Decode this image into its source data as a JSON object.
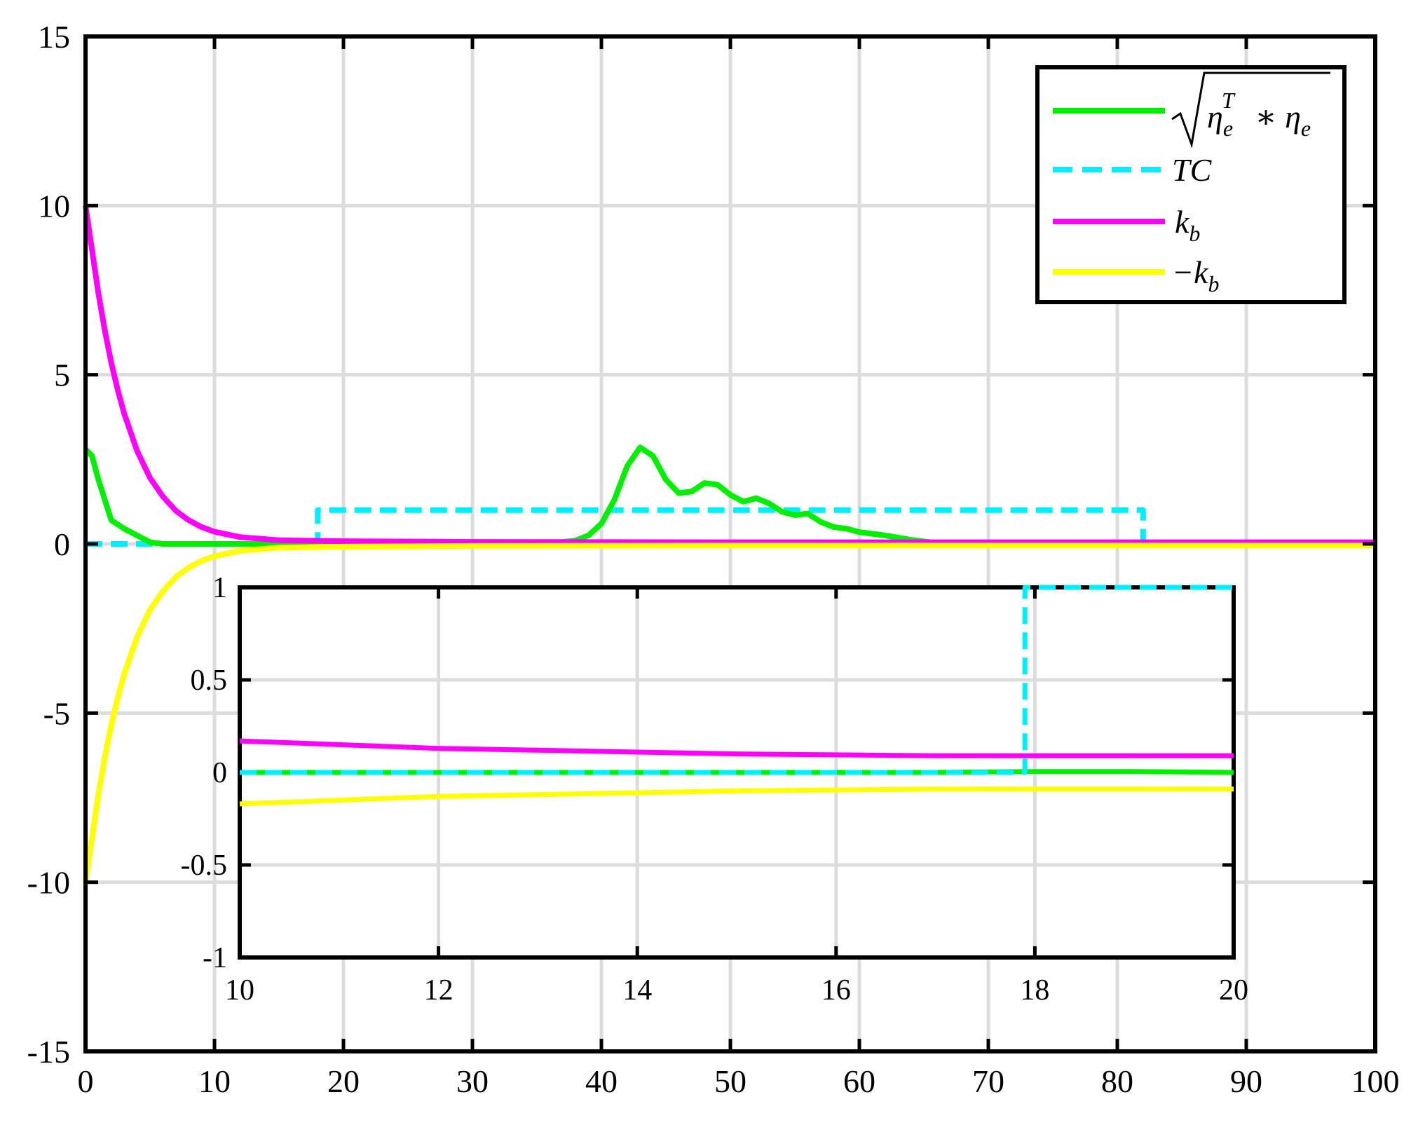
{
  "chart_data": [
    {
      "type": "line",
      "title": "",
      "xlabel": "",
      "ylabel": "",
      "xlim": [
        0,
        100
      ],
      "ylim": [
        -15,
        15
      ],
      "xticks": [
        0,
        10,
        20,
        30,
        40,
        50,
        60,
        70,
        80,
        90,
        100
      ],
      "yticks": [
        15,
        10,
        5,
        0,
        -5,
        -10,
        -15
      ],
      "xtick_labels": [
        "0",
        "10",
        "20",
        "30",
        "40",
        "50",
        "60",
        "70",
        "80",
        "90",
        "100"
      ],
      "ytick_labels": [
        "15",
        "10",
        "5",
        "0",
        "-5",
        "-10",
        "-15"
      ],
      "grid": true,
      "legend": {
        "placement": "top-right",
        "entries": [
          "√(η_e^T * η_e)",
          "TC",
          "k_b",
          "−k_b"
        ]
      },
      "series": [
        {
          "name": "√(η_e^T * η_e)",
          "color": "#00ee00",
          "style": "solid",
          "x": [
            0,
            0.5,
            1,
            1.5,
            2,
            3,
            4,
            5,
            6,
            8,
            10,
            15,
            20,
            25,
            30,
            33,
            36,
            38,
            39,
            40,
            41,
            42,
            43,
            44,
            45,
            46,
            47,
            48,
            49,
            50,
            51,
            52,
            53,
            54,
            55,
            56,
            57,
            58,
            59,
            60,
            62,
            64,
            66,
            70,
            80,
            90,
            100
          ],
          "y": [
            2.8,
            2.6,
            1.9,
            1.3,
            0.7,
            0.45,
            0.25,
            0.05,
            0.0,
            0.0,
            0.0,
            0.0,
            0.0,
            0.0,
            0.0,
            0.0,
            0.02,
            0.1,
            0.25,
            0.6,
            1.3,
            2.3,
            2.85,
            2.6,
            1.9,
            1.5,
            1.55,
            1.8,
            1.75,
            1.45,
            1.25,
            1.35,
            1.2,
            0.95,
            0.85,
            0.9,
            0.65,
            0.5,
            0.45,
            0.35,
            0.25,
            0.12,
            0.03,
            0.0,
            0.0,
            0.0,
            0.0
          ]
        },
        {
          "name": "TC",
          "color": "#00eeff",
          "style": "dashed",
          "x": [
            0,
            18,
            18,
            82,
            82,
            100
          ],
          "y": [
            0,
            0,
            1,
            1,
            0,
            0
          ]
        },
        {
          "name": "k_b",
          "color": "#ff00ff",
          "style": "solid",
          "x": [
            0,
            0.5,
            1,
            1.5,
            2,
            2.5,
            3,
            4,
            5,
            6,
            7,
            8,
            9,
            10,
            12,
            15,
            20,
            30,
            50,
            70,
            100
          ],
          "y": [
            10,
            8.7,
            7.4,
            6.3,
            5.35,
            4.55,
            3.85,
            2.75,
            1.95,
            1.4,
            0.98,
            0.7,
            0.5,
            0.36,
            0.2,
            0.11,
            0.08,
            0.06,
            0.05,
            0.05,
            0.05
          ]
        },
        {
          "name": "−k_b",
          "color": "#ffff00",
          "style": "solid",
          "x": [
            0,
            0.5,
            1,
            1.5,
            2,
            2.5,
            3,
            4,
            5,
            6,
            7,
            8,
            9,
            10,
            12,
            15,
            20,
            30,
            50,
            70,
            100
          ],
          "y": [
            -10,
            -8.7,
            -7.4,
            -6.3,
            -5.35,
            -4.55,
            -3.85,
            -2.75,
            -1.95,
            -1.4,
            -0.98,
            -0.7,
            -0.5,
            -0.36,
            -0.2,
            -0.11,
            -0.08,
            -0.06,
            -0.05,
            -0.05,
            -0.05
          ]
        }
      ]
    },
    {
      "type": "line",
      "title": "",
      "xlabel": "",
      "ylabel": "",
      "xlim": [
        10,
        20
      ],
      "ylim": [
        -1,
        1
      ],
      "xticks": [
        10,
        12,
        14,
        16,
        18,
        20
      ],
      "yticks": [
        1,
        0.5,
        0,
        -0.5,
        -1
      ],
      "xtick_labels": [
        "10",
        "12",
        "14",
        "16",
        "18",
        "20"
      ],
      "ytick_labels": [
        "1",
        "0.5",
        "0",
        "-0.5",
        "-1"
      ],
      "grid": true,
      "series": [
        {
          "name": "√(η_e^T * η_e)",
          "color": "#00ee00",
          "style": "solid",
          "x": [
            10,
            12,
            14,
            16,
            17,
            18,
            19,
            20
          ],
          "y": [
            0,
            0,
            0,
            0,
            0,
            0.005,
            0.005,
            0
          ]
        },
        {
          "name": "TC",
          "color": "#00eeff",
          "style": "dashed",
          "x": [
            10,
            17.9,
            17.9,
            20
          ],
          "y": [
            0,
            0,
            1,
            1
          ]
        },
        {
          "name": "k_b",
          "color": "#ff00ff",
          "style": "solid",
          "x": [
            10,
            11,
            12,
            13,
            14,
            15,
            16,
            17,
            18,
            19,
            20
          ],
          "y": [
            0.17,
            0.15,
            0.13,
            0.12,
            0.11,
            0.1,
            0.095,
            0.09,
            0.09,
            0.09,
            0.09
          ]
        },
        {
          "name": "−k_b",
          "color": "#ffff00",
          "style": "solid",
          "x": [
            10,
            11,
            12,
            13,
            14,
            15,
            16,
            17,
            18,
            19,
            20
          ],
          "y": [
            -0.17,
            -0.15,
            -0.13,
            -0.12,
            -0.11,
            -0.1,
            -0.095,
            -0.09,
            -0.09,
            -0.09,
            -0.09
          ]
        }
      ]
    }
  ]
}
